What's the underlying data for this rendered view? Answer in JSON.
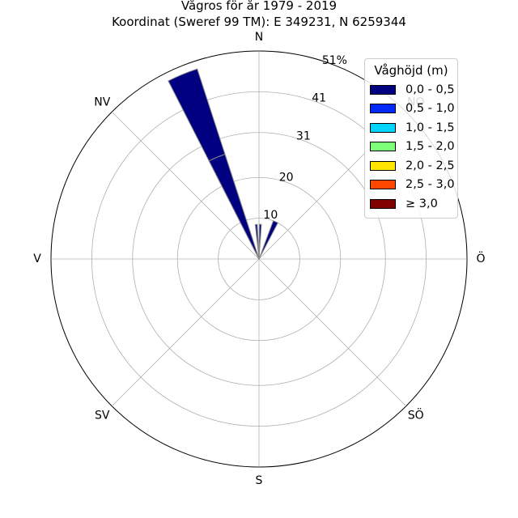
{
  "title": "Vågros för år 1979 - 2019",
  "subtitle": "Koordinat (Sweref 99 TM): E 349231, N 6259344",
  "legend": {
    "title": "Våghöjd (m)",
    "placement": "top-right",
    "items": [
      {
        "label": "0,0 - 0,5",
        "color": "#000080"
      },
      {
        "label": "0,5 - 1,0",
        "color": "#0029ff"
      },
      {
        "label": "1,0 - 1,5",
        "color": "#00d4ff"
      },
      {
        "label": "1,5 - 2,0",
        "color": "#7dff7a"
      },
      {
        "label": "2,0 - 2,5",
        "color": "#ffe600"
      },
      {
        "label": "2,5 - 3,0",
        "color": "#ff4700"
      },
      {
        "label": "≥ 3,0",
        "color": "#800000"
      }
    ]
  },
  "chart_data": {
    "type": "windrose",
    "directions": [
      "N",
      "NO",
      "Ö",
      "SÖ",
      "S",
      "SV",
      "V",
      "NV"
    ],
    "radial_ticks": [
      "10",
      "20",
      "31",
      "41",
      "51%"
    ],
    "radial_tick_values": [
      10,
      20,
      31,
      41,
      51
    ],
    "rmax": 51,
    "grid": true,
    "sectors": [
      {
        "direction_deg": -22.5,
        "width_deg": 9,
        "value": 49,
        "bin": "0,0 - 0,5"
      },
      {
        "direction_deg": -22.5,
        "width_deg": 9,
        "value": 27,
        "bin": "0,0 - 0,5"
      },
      {
        "direction_deg": -4.5,
        "width_deg": 3.2,
        "value": 8.5,
        "bin": "0,0 - 0,5"
      },
      {
        "direction_deg": 2.3,
        "width_deg": 3.2,
        "value": 8.5,
        "bin": "0,0 - 0,5"
      },
      {
        "direction_deg": 24,
        "width_deg": 7,
        "value": 10,
        "bin": "0,0 - 0,5"
      }
    ]
  }
}
